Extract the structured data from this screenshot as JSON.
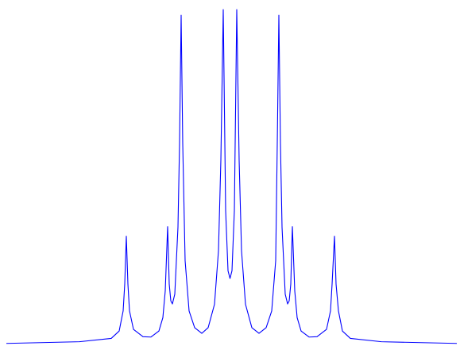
{
  "chart_data": {
    "type": "line",
    "color": "#0000ff",
    "xlim": [
      0,
      579
    ],
    "ylim": [
      0,
      100
    ],
    "x": [
      8,
      100,
      140,
      150,
      155,
      157,
      159,
      161,
      163,
      168,
      180,
      190,
      200,
      205,
      208,
      211,
      213,
      215,
      217,
      220,
      224,
      226,
      228,
      230,
      233,
      238,
      245,
      254,
      262,
      270,
      275,
      278,
      281,
      284,
      287,
      289.5,
      292,
      295,
      298,
      301,
      304,
      309,
      317,
      326,
      335,
      342,
      347,
      349,
      351,
      353,
      355,
      359,
      362,
      364,
      366,
      368,
      371,
      374,
      379,
      389,
      399,
      411,
      416,
      418,
      421,
      423,
      426,
      431,
      441,
      480,
      575
    ],
    "values": [
      0.3,
      0.8,
      1.8,
      4,
      10,
      18,
      32.3,
      18,
      10,
      4.5,
      2.3,
      2.2,
      4,
      8,
      16,
      35.2,
      18,
      13,
      12.1,
      15,
      35,
      60,
      98.3,
      60,
      25,
      10,
      5,
      3.3,
      5,
      12,
      28,
      55,
      100,
      40,
      22,
      19.7,
      22,
      40,
      100,
      55,
      28,
      12,
      5,
      3.3,
      5,
      10,
      25,
      60,
      98.3,
      60,
      35,
      15,
      12.1,
      13,
      18,
      35.2,
      16,
      8,
      4,
      2.2,
      2.3,
      4.5,
      10,
      18,
      32.3,
      18,
      10,
      4,
      1.8,
      0.8,
      0.3
    ]
  }
}
